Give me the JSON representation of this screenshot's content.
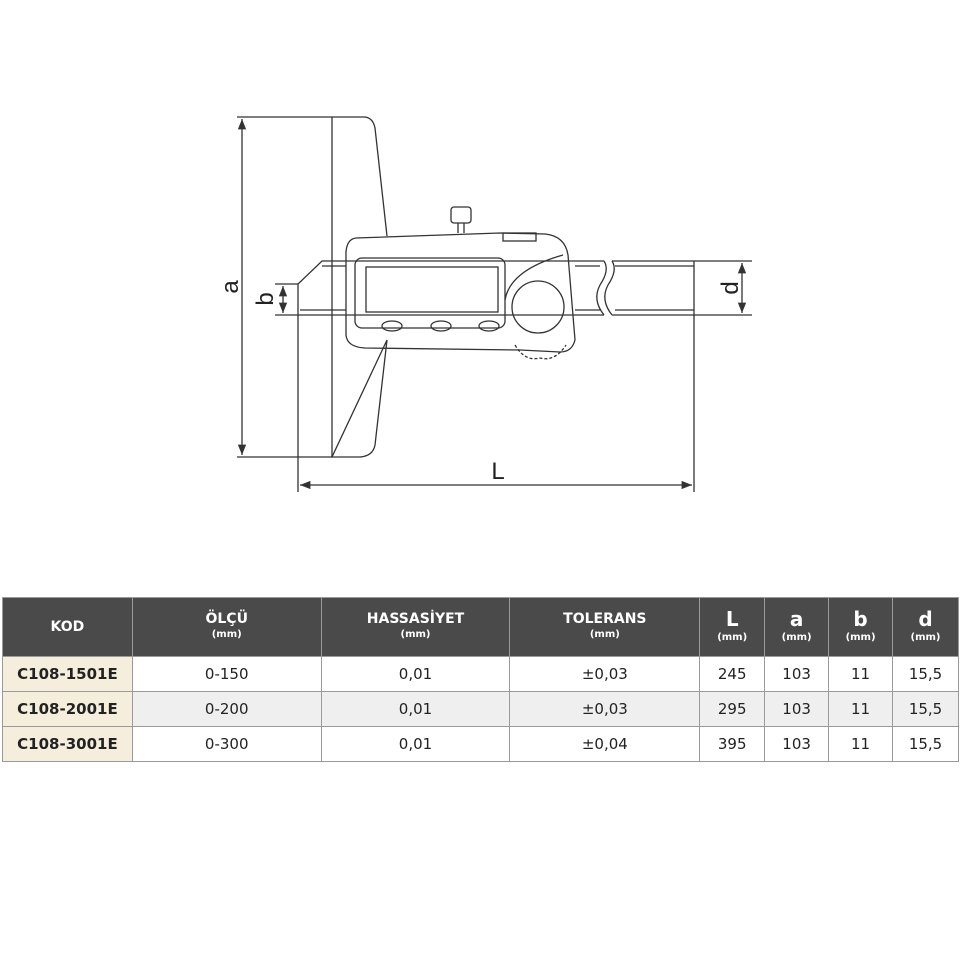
{
  "drawing": {
    "dimension_labels": {
      "a": "a",
      "b": "b",
      "d": "d",
      "L": "L"
    }
  },
  "table": {
    "headers": [
      {
        "label": "KOD",
        "unit": ""
      },
      {
        "label": "ÖLÇÜ",
        "unit": "(mm)"
      },
      {
        "label": "HASSASİYET",
        "unit": "(mm)"
      },
      {
        "label": "TOLERANS",
        "unit": "(mm)"
      },
      {
        "label": "L",
        "unit": "(mm)"
      },
      {
        "label": "a",
        "unit": "(mm)"
      },
      {
        "label": "b",
        "unit": "(mm)"
      },
      {
        "label": "d",
        "unit": "(mm)"
      }
    ],
    "rows": [
      [
        "C108-1501E",
        "0-150",
        "0,01",
        "±0,03",
        "245",
        "103",
        "11",
        "15,5"
      ],
      [
        "C108-2001E",
        "0-200",
        "0,01",
        "±0,03",
        "295",
        "103",
        "11",
        "15,5"
      ],
      [
        "C108-3001E",
        "0-300",
        "0,01",
        "±0,04",
        "395",
        "103",
        "11",
        "15,5"
      ]
    ],
    "colors": {
      "header_bg": "#4a4a4a",
      "code_bg": "#f6eedd",
      "alt_row_bg": "#efefef"
    }
  }
}
